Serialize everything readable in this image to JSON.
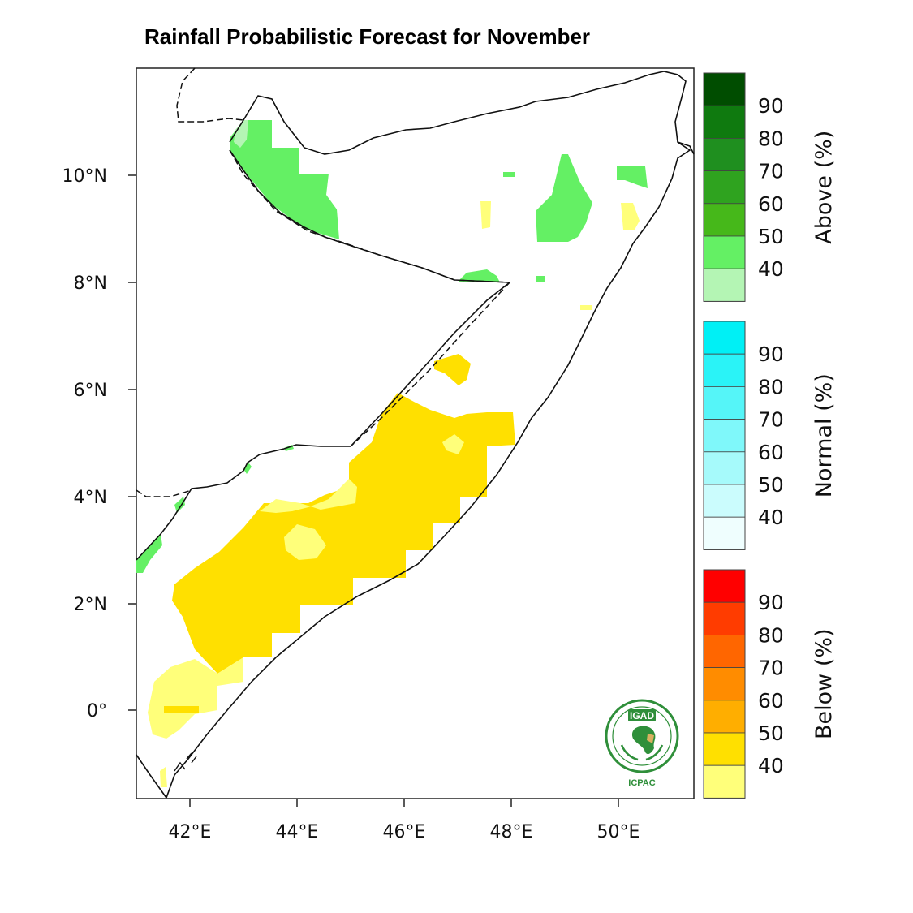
{
  "title": "Rainfall Probabilistic Forecast for November",
  "axes": {
    "x_ticks": [
      "42°E",
      "44°E",
      "46°E",
      "48°E",
      "50°E"
    ],
    "y_ticks": [
      "10°N",
      "8°N",
      "6°N",
      "4°N",
      "2°N",
      "0°"
    ],
    "lon_range": [
      41,
      51.4
    ],
    "lat_range": [
      -1.65,
      11.95
    ]
  },
  "legend": [
    {
      "title": "Above (%)",
      "labels": [
        "90",
        "80",
        "70",
        "60",
        "50",
        "40"
      ],
      "colors": [
        "#004d00",
        "#0f7a0f",
        "#1f8f1f",
        "#2fa31f",
        "#46b81a",
        "#64f064",
        "#b4f5b4"
      ]
    },
    {
      "title": "Normal (%)",
      "labels": [
        "90",
        "80",
        "70",
        "60",
        "50",
        "40"
      ],
      "colors": [
        "#00f0f5",
        "#2af3f7",
        "#55f5f8",
        "#7ff8fa",
        "#a6fafb",
        "#cbfcfd",
        "#effefe"
      ]
    },
    {
      "title": "Below (%)",
      "labels": [
        "90",
        "80",
        "70",
        "60",
        "50",
        "40"
      ],
      "colors": [
        "#ff0000",
        "#ff3c00",
        "#ff6600",
        "#ff8c00",
        "#ffae00",
        "#ffe000",
        "#ffff7a"
      ]
    }
  ],
  "logo": {
    "name": "IGAD",
    "caption": "ICPAC"
  }
}
